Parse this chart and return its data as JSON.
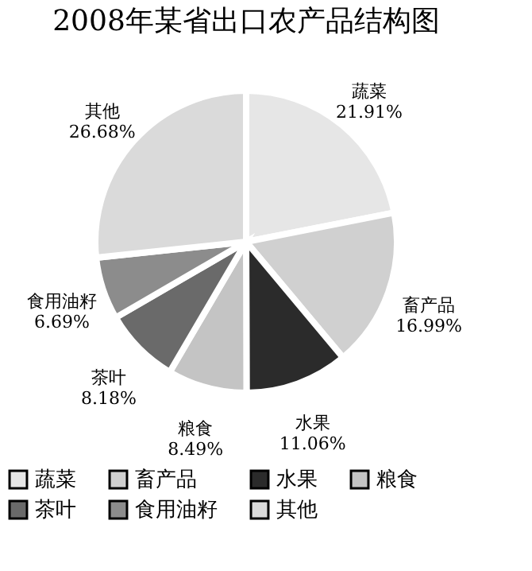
{
  "chart_data": {
    "type": "pie",
    "title": "2008年某省出口农产品结构图",
    "categories": [
      "蔬菜",
      "畜产品",
      "水果",
      "粮食",
      "茶叶",
      "食用油籽",
      "其他"
    ],
    "values": [
      21.91,
      16.99,
      11.06,
      8.49,
      8.18,
      6.69,
      26.68
    ],
    "value_labels": [
      "21.91%",
      "16.99%",
      "11.06%",
      "8.49%",
      "8.18%",
      "6.69%",
      "26.68%"
    ],
    "colors": [
      "#e6e6e6",
      "#d0d0d0",
      "#2b2b2b",
      "#c4c4c4",
      "#6a6a6a",
      "#8c8c8c",
      "#dadada"
    ],
    "legend": "bottom"
  }
}
